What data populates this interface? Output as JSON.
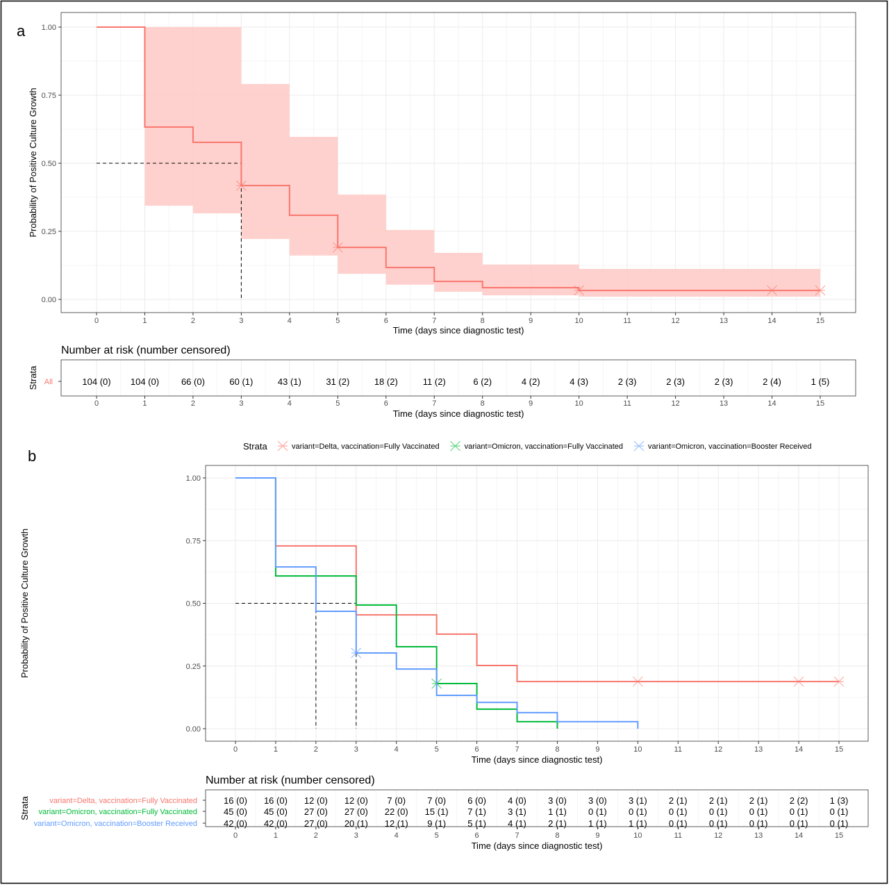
{
  "panel_labels": [
    "a",
    "b"
  ],
  "colors": {
    "delta": "#F8766D",
    "omicron_fv": "#00BA38",
    "omicron_booster": "#619CFF",
    "ci_fill": "#FFC9C6",
    "grid": "#EBEBEB"
  },
  "chart_data": [
    {
      "type": "line",
      "subtype": "kaplan-meier step",
      "xlabel": "Time (days since diagnostic test)",
      "ylabel": "Probability of Positive Culture Growth",
      "xlim": [
        0,
        15
      ],
      "ylim": [
        0,
        1
      ],
      "x_ticks": [
        "0",
        "1",
        "2",
        "3",
        "4",
        "5",
        "6",
        "7",
        "8",
        "9",
        "10",
        "11",
        "12",
        "13",
        "14",
        "15"
      ],
      "y_ticks": [
        "0.00",
        "0.25",
        "0.50",
        "0.75",
        "1.00"
      ],
      "grid": true,
      "median_lines": [
        3
      ],
      "series": [
        {
          "color": "#F8766D",
          "times": [
            0,
            1,
            2,
            3,
            4,
            5,
            6,
            7,
            8,
            10
          ],
          "survival": [
            1,
            0.633,
            0.577,
            0.418,
            0.309,
            0.191,
            0.117,
            0.066,
            0.043,
            0.033
          ],
          "ci_lower": [
            1,
            0.344,
            0.316,
            0.222,
            0.161,
            0.094,
            0.054,
            0.028,
            0.015,
            0.01
          ],
          "ci_upper": [
            1,
            1,
            1,
            0.791,
            0.597,
            0.385,
            0.255,
            0.171,
            0.128,
            0.112
          ],
          "end": 15,
          "censored": [
            3,
            5,
            10,
            14,
            15
          ]
        }
      ],
      "risk_table": {
        "title": "Number at risk (number censored)",
        "strata_label": "Strata",
        "xlabel": "Time (days since diagnostic test)",
        "rows": [
          {
            "label": "All",
            "color": "#F8766D",
            "values": [
              "104 (0)",
              "104 (0)",
              "66 (0)",
              "60 (1)",
              "43 (1)",
              "31 (2)",
              "18 (2)",
              "11 (2)",
              "6 (2)",
              "4 (2)",
              "4 (3)",
              "2 (3)",
              "2 (3)",
              "2 (3)",
              "2 (4)",
              "1 (5)"
            ]
          }
        ]
      }
    },
    {
      "type": "line",
      "subtype": "kaplan-meier step",
      "xlabel": "Time (days since diagnostic test)",
      "ylabel": "Probability of Positive Culture Growth",
      "xlim": [
        0,
        15
      ],
      "ylim": [
        0,
        1
      ],
      "x_ticks": [
        "0",
        "1",
        "2",
        "3",
        "4",
        "5",
        "6",
        "7",
        "8",
        "9",
        "10",
        "11",
        "12",
        "13",
        "14",
        "15"
      ],
      "y_ticks": [
        "0.00",
        "0.25",
        "0.50",
        "0.75",
        "1.00"
      ],
      "grid": true,
      "median_lines": [
        2,
        3
      ],
      "legend": {
        "title": "Strata",
        "placement": "top"
      },
      "series": [
        {
          "name": "variant=Delta, vaccination=Fully Vaccinated",
          "color": "#F8766D",
          "times": [
            0,
            1,
            3,
            5,
            6,
            7
          ],
          "survival": [
            1,
            0.729,
            0.454,
            0.377,
            0.252,
            0.188
          ],
          "end": 15,
          "censored": [
            10,
            14,
            15
          ]
        },
        {
          "name": "variant=Omicron, vaccination=Fully Vaccinated",
          "color": "#00BA38",
          "times": [
            0,
            1,
            3,
            4,
            5,
            6,
            7,
            8
          ],
          "survival": [
            1,
            0.609,
            0.493,
            0.327,
            0.18,
            0.078,
            0.028,
            0
          ],
          "end": 8,
          "censored": [
            5
          ]
        },
        {
          "name": "variant=Omicron, vaccination=Booster Received",
          "color": "#619CFF",
          "times": [
            0,
            1,
            2,
            3,
            4,
            5,
            6,
            7,
            8,
            10
          ],
          "survival": [
            1,
            0.645,
            0.468,
            0.302,
            0.238,
            0.133,
            0.105,
            0.064,
            0.028,
            0
          ],
          "end": 10,
          "censored": [
            3
          ]
        }
      ],
      "risk_table": {
        "title": "Number at risk (number censored)",
        "strata_label": "Strata",
        "xlabel": "Time (days since diagnostic test)",
        "rows": [
          {
            "label": "variant=Delta, vaccination=Fully Vaccinated",
            "color": "#F8766D",
            "values": [
              "16 (0)",
              "16 (0)",
              "12 (0)",
              "12 (0)",
              "7 (0)",
              "7 (0)",
              "6 (0)",
              "4 (0)",
              "3 (0)",
              "3 (0)",
              "3 (1)",
              "2 (1)",
              "2 (1)",
              "2 (1)",
              "2 (2)",
              "1 (3)"
            ]
          },
          {
            "label": "variant=Omicron, vaccination=Fully Vaccinated",
            "color": "#00BA38",
            "values": [
              "45 (0)",
              "45 (0)",
              "27 (0)",
              "27 (0)",
              "22 (0)",
              "15 (1)",
              "7 (1)",
              "3 (1)",
              "1 (1)",
              "0 (1)",
              "0 (1)",
              "0 (1)",
              "0 (1)",
              "0 (1)",
              "0 (1)",
              "0 (1)"
            ]
          },
          {
            "label": "variant=Omicron, vaccination=Booster Received",
            "color": "#619CFF",
            "values": [
              "42 (0)",
              "42 (0)",
              "27 (0)",
              "20 (1)",
              "12 (1)",
              "9 (1)",
              "5 (1)",
              "4 (1)",
              "2 (1)",
              "1 (1)",
              "1 (1)",
              "0 (1)",
              "0 (1)",
              "0 (1)",
              "0 (1)",
              "0 (1)"
            ]
          }
        ]
      }
    }
  ]
}
